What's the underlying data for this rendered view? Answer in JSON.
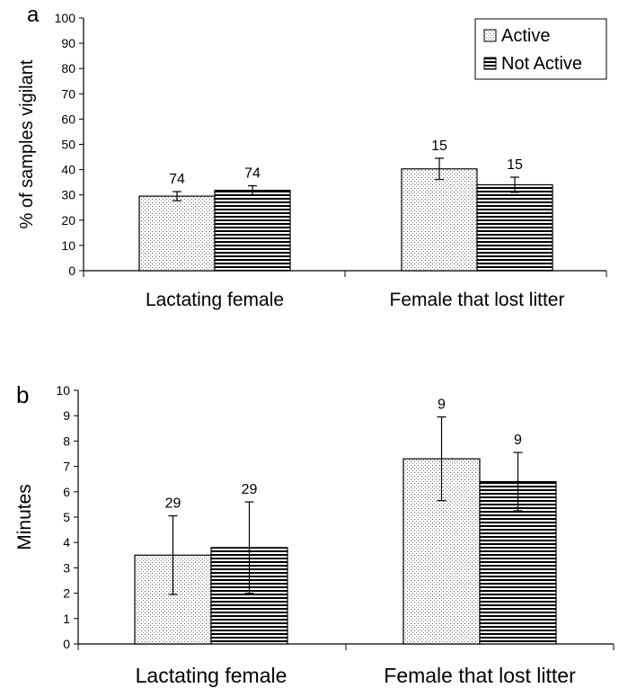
{
  "chart_data": [
    {
      "panel_label": "a",
      "type": "bar",
      "categories": [
        "Lactating female",
        "Female that lost litter"
      ],
      "series": [
        {
          "name": "Active",
          "pattern": "dotted",
          "values": [
            29.5,
            40.3
          ],
          "error": [
            1.8,
            4.2
          ],
          "n_labels": [
            "74",
            "15"
          ]
        },
        {
          "name": "Not Active",
          "pattern": "horizontal-lines",
          "values": [
            31.8,
            34.0
          ],
          "error": [
            1.8,
            3.0
          ],
          "n_labels": [
            "74",
            "15"
          ]
        }
      ],
      "ylabel": "% of samples vigilant",
      "ylim": [
        0,
        100
      ],
      "yticks": [
        "0",
        "10",
        "20",
        "30",
        "40",
        "50",
        "60",
        "70",
        "80",
        "90",
        "100"
      ],
      "legend": "top-right",
      "grid": false
    },
    {
      "panel_label": "b",
      "type": "bar",
      "categories": [
        "Lactating female",
        "Female that lost litter"
      ],
      "series": [
        {
          "name": "Active",
          "pattern": "dotted",
          "values": [
            3.5,
            7.3
          ],
          "error": [
            1.55,
            1.65
          ],
          "n_labels": [
            "29",
            "9"
          ]
        },
        {
          "name": "Not Active",
          "pattern": "horizontal-lines",
          "values": [
            3.8,
            6.4
          ],
          "error": [
            1.8,
            1.15
          ],
          "n_labels": [
            "29",
            "9"
          ]
        }
      ],
      "ylabel": "Minutes",
      "ylim": [
        0,
        10
      ],
      "yticks": [
        "0",
        "1",
        "2",
        "3",
        "4",
        "5",
        "6",
        "7",
        "8",
        "9",
        "10"
      ],
      "legend": "none",
      "grid": false
    }
  ]
}
